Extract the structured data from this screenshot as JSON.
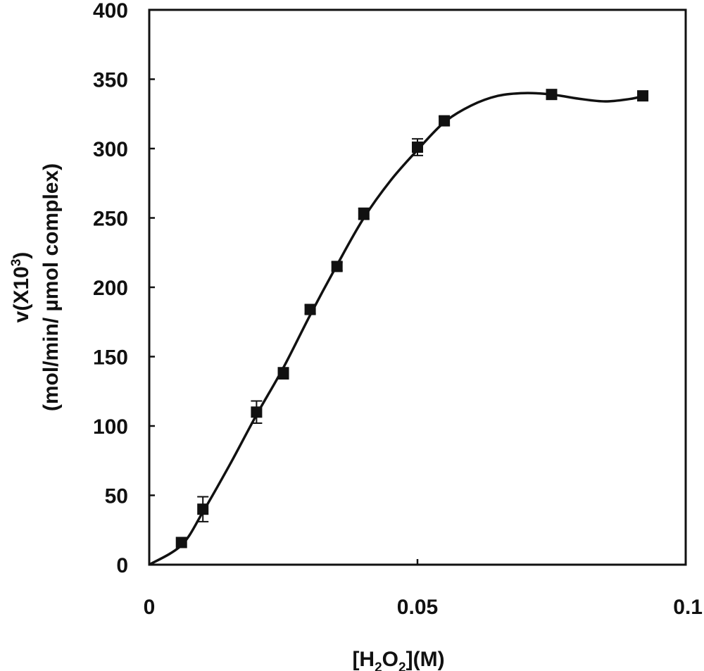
{
  "chart_data": {
    "type": "scatter",
    "title": "",
    "xlabel": {
      "prefix": "[H",
      "sub1": "2",
      "mid": "O",
      "sub2": "2",
      "suffix": "](M)"
    },
    "ylabel": {
      "line1": "v(X10",
      "line1_sup": "3",
      "line1_end": ")",
      "line2": "(mol/min/ µmol complex)"
    },
    "xlim": [
      0,
      0.1
    ],
    "ylim": [
      0,
      400
    ],
    "x_ticks": [
      0,
      0.05,
      0.1
    ],
    "x_tick_labels": [
      "0",
      "0.05",
      "0.1"
    ],
    "y_ticks": [
      0,
      50,
      100,
      150,
      200,
      250,
      300,
      350,
      400
    ],
    "y_tick_labels": [
      "0",
      "50",
      "100",
      "150",
      "200",
      "250",
      "300",
      "350",
      "400"
    ],
    "grid": false,
    "legend": "none",
    "marker_color": "#111111",
    "series": [
      {
        "marker": "square",
        "x": [
          0.006,
          0.01,
          0.02,
          0.025,
          0.03,
          0.035,
          0.04,
          0.05,
          0.055,
          0.075,
          0.092
        ],
        "y": [
          16,
          40,
          110,
          138,
          184,
          215,
          253,
          301,
          320,
          339,
          338
        ],
        "error": [
          0,
          9,
          8,
          4,
          3,
          3,
          4,
          6,
          3,
          3,
          0
        ]
      }
    ],
    "fit_curve": {
      "x": [
        0,
        0.006,
        0.01,
        0.015,
        0.02,
        0.025,
        0.03,
        0.035,
        0.04,
        0.045,
        0.05,
        0.055,
        0.06,
        0.065,
        0.07,
        0.075,
        0.08,
        0.085,
        0.09,
        0.092
      ],
      "y": [
        0,
        14,
        38,
        72,
        108,
        142,
        180,
        216,
        250,
        277,
        299,
        319,
        331,
        338,
        340,
        339,
        336,
        334,
        336,
        338
      ]
    }
  }
}
